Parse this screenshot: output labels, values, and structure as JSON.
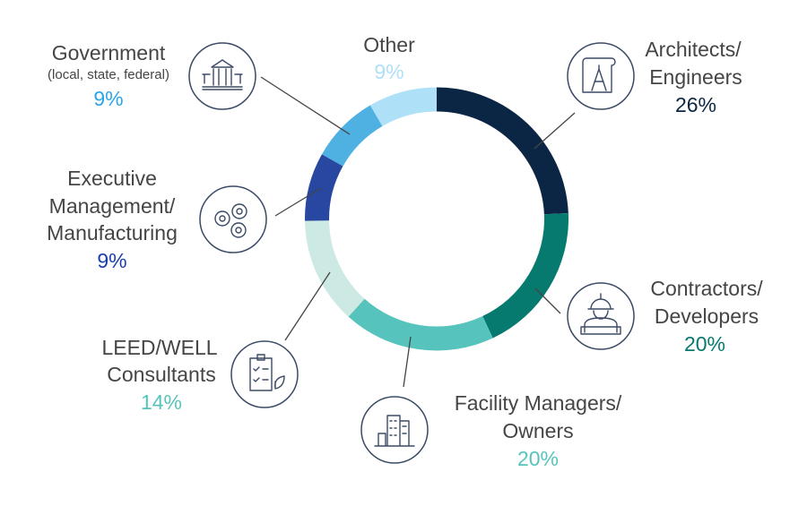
{
  "chart_data": {
    "type": "pie",
    "variant": "donut",
    "start": "top",
    "direction": "clockwise",
    "slices": [
      {
        "label": [
          "Architects/",
          "Engineers"
        ],
        "value": 26,
        "pct_label": "26%",
        "color": "#0b2545",
        "pct_color": "#0b2545",
        "icon": "blueprint-compass-icon"
      },
      {
        "label": [
          "Contractors/",
          "Developers"
        ],
        "value": 20,
        "pct_label": "20%",
        "color": "#067a6f",
        "pct_color": "#067a6f",
        "icon": "construction-worker-icon"
      },
      {
        "label": [
          "Facility Managers/",
          "Owners"
        ],
        "value": 20,
        "pct_label": "20%",
        "color": "#56c4bc",
        "pct_color": "#56c4bc",
        "icon": "buildings-icon"
      },
      {
        "label": [
          "LEED/WELL",
          "Consultants"
        ],
        "value": 14,
        "pct_label": "14%",
        "color": "#cde9e3",
        "pct_color": "#56c4bc",
        "icon": "checklist-leaf-icon"
      },
      {
        "label": [
          "Executive",
          "Management/",
          "Manufacturing"
        ],
        "value": 9,
        "pct_label": "9%",
        "color": "#2747a0",
        "pct_color": "#1a3fa8",
        "icon": "gears-icon"
      },
      {
        "label": [
          "Government"
        ],
        "sublabel": "(local, state, federal)",
        "value": 9,
        "pct_label": "9%",
        "color": "#4fb0e2",
        "pct_color": "#29a6e8",
        "icon": "government-building-icon"
      },
      {
        "label": [
          "Other"
        ],
        "value": 9,
        "pct_label": "9%",
        "color": "#aee0f8",
        "pct_color": "#aee0f8",
        "icon": null
      }
    ]
  }
}
